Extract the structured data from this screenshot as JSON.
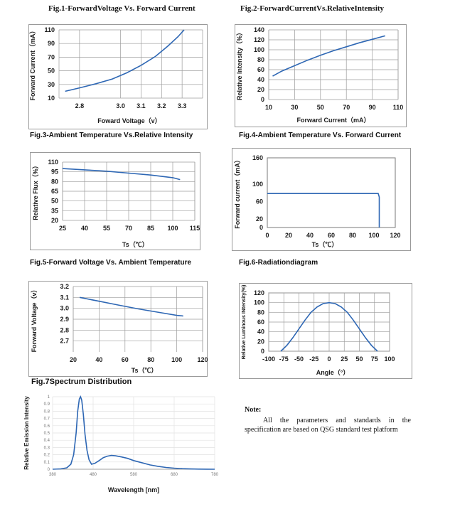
{
  "colors": {
    "curve": "#2e67b4",
    "grid": "#9c9c9c",
    "frame": "#9a9a9a"
  },
  "note": {
    "title": "Note:",
    "text": "All the parameters and standards in the specification are based on QSG standard test platform"
  },
  "chart_data": [
    {
      "id": "fig1",
      "type": "line",
      "title": "Fig.1-ForwardVoltage Vs. Forward Current",
      "xlabel": "Foward Voltage（v）",
      "ylabel": "Forward Current（mA）",
      "xlim": [
        2.7,
        3.4
      ],
      "ylim": [
        10,
        110
      ],
      "xticks": [
        2.8,
        3.0,
        3.1,
        3.2,
        3.3
      ],
      "xtick_labels": [
        "2.8",
        "3.0",
        "3.1",
        "3.2",
        "3.3"
      ],
      "yticks": [
        10,
        30,
        50,
        70,
        90,
        110
      ],
      "ytick_labels": [
        "10",
        "30",
        "50",
        "70",
        "90",
        "110"
      ],
      "grid": true,
      "series": [
        {
          "x": [
            2.73,
            2.8,
            2.88,
            2.96,
            3.03,
            3.1,
            3.17,
            3.23,
            3.28,
            3.31
          ],
          "y": [
            20,
            25,
            31,
            38,
            47,
            58,
            71,
            86,
            100,
            110
          ]
        }
      ]
    },
    {
      "id": "fig2",
      "type": "line",
      "title": "Fig.2-ForwardCurrentVs.RelativeIntensity",
      "xlabel": "Forward Current（mA）",
      "ylabel": "Relative Intensity（%）",
      "xlim": [
        10,
        110
      ],
      "ylim": [
        0,
        140
      ],
      "xticks": [
        10,
        30,
        50,
        70,
        90,
        110
      ],
      "xtick_labels": [
        "10",
        "30",
        "50",
        "70",
        "90",
        "110"
      ],
      "yticks": [
        0,
        20,
        40,
        60,
        80,
        100,
        120,
        140
      ],
      "ytick_labels": [
        "0",
        "20",
        "40",
        "60",
        "80",
        "100",
        "120",
        "140"
      ],
      "grid": true,
      "series": [
        {
          "x": [
            13,
            20,
            30,
            40,
            50,
            60,
            70,
            80,
            90,
            100
          ],
          "y": [
            47,
            57,
            68,
            79,
            89,
            98,
            106,
            114,
            121,
            128
          ]
        }
      ]
    },
    {
      "id": "fig3",
      "type": "line",
      "title": "Fig.3-Ambient Temperature Vs.Relative Intensity",
      "xlabel": "Ts（℃）",
      "ylabel": "Relative Flux（%）",
      "xlim": [
        25,
        115
      ],
      "ylim": [
        20,
        110
      ],
      "xticks": [
        25,
        40,
        55,
        70,
        85,
        100,
        115
      ],
      "xtick_labels": [
        "25",
        "40",
        "55",
        "70",
        "85",
        "100",
        "115"
      ],
      "yticks": [
        20,
        35,
        50,
        65,
        80,
        95,
        110
      ],
      "ytick_labels": [
        "20",
        "35",
        "50",
        "65",
        "80",
        "95",
        "110"
      ],
      "extra_yticks": [
        25,
        50,
        80
      ],
      "grid": true,
      "series": [
        {
          "x": [
            25,
            40,
            55,
            70,
            85,
            100,
            105
          ],
          "y": [
            100,
            98,
            96,
            93,
            90,
            86,
            83
          ]
        }
      ]
    },
    {
      "id": "fig4",
      "type": "line",
      "title": "Fig.4-Ambient Temperature Vs. Forward Current",
      "xlabel": "Ts（℃）",
      "ylabel": "Forward current（mA）",
      "xlim": [
        0,
        120
      ],
      "ylim": [
        0,
        160
      ],
      "xticks": [
        0,
        20,
        40,
        60,
        80,
        100,
        120
      ],
      "xtick_labels": [
        "0",
        "20",
        "40",
        "60",
        "80",
        "100",
        "120"
      ],
      "yticks": [
        0,
        20,
        60,
        100,
        160
      ],
      "ytick_labels": [
        "0",
        "20",
        "60",
        "100",
        "160"
      ],
      "grid": false,
      "series": [
        {
          "x": [
            0,
            101,
            104,
            105,
            105
          ],
          "y": [
            78,
            78,
            78,
            70,
            0
          ]
        }
      ]
    },
    {
      "id": "fig5",
      "type": "line",
      "title": "Fig.5-Forward Voltage Vs. Ambient Temperature",
      "xlabel": "Ts（℃）",
      "ylabel": "Forward Voltage（v）",
      "xlim": [
        20,
        120
      ],
      "ylim": [
        2.6,
        3.2
      ],
      "xticks": [
        20,
        40,
        60,
        80,
        100,
        120
      ],
      "xtick_labels": [
        "20",
        "40",
        "60",
        "80",
        "100",
        "120"
      ],
      "yticks": [
        2.7,
        2.8,
        2.9,
        3.0,
        3.1,
        3.2
      ],
      "ytick_labels": [
        "2.7",
        "2.8",
        "2.9",
        "3.0",
        "3.1",
        "3.2"
      ],
      "grid": true,
      "series": [
        {
          "x": [
            25,
            40,
            55,
            70,
            85,
            100,
            105
          ],
          "y": [
            3.1,
            3.065,
            3.03,
            2.995,
            2.965,
            2.935,
            2.93
          ]
        }
      ]
    },
    {
      "id": "fig6",
      "type": "line",
      "title": "Fig.6-Radiationdiagram",
      "xlabel": "Angle（°）",
      "ylabel": "Relative Luminous INtensity(%)",
      "xlim": [
        -100,
        100
      ],
      "ylim": [
        0,
        120
      ],
      "xticks": [
        -100,
        -75,
        -50,
        -25,
        0,
        25,
        50,
        75,
        100
      ],
      "xtick_labels": [
        "-100",
        "-75",
        "-50",
        "-25",
        "0",
        "25",
        "50",
        "75",
        "100"
      ],
      "yticks": [
        0,
        20,
        40,
        60,
        80,
        100,
        120
      ],
      "ytick_labels": [
        "0",
        "20",
        "40",
        "60",
        "80",
        "100",
        "120"
      ],
      "grid": true,
      "series": [
        {
          "x": [
            -80,
            -70,
            -60,
            -50,
            -40,
            -30,
            -20,
            -10,
            0,
            10,
            20,
            30,
            40,
            50,
            60,
            70,
            80
          ],
          "y": [
            0,
            12,
            28,
            46,
            64,
            80,
            91,
            98,
            100,
            98,
            91,
            80,
            64,
            46,
            28,
            12,
            0
          ]
        }
      ]
    },
    {
      "id": "fig7",
      "type": "line",
      "title": "Fig.7Spectrum Distribution",
      "xlabel": "Wavelength [nm]",
      "ylabel": "Relative Emission Intensity",
      "xlim": [
        380,
        780
      ],
      "ylim": [
        0,
        1
      ],
      "xticks": [
        380,
        480,
        580,
        680,
        780
      ],
      "xtick_labels": [
        "380",
        "480",
        "580",
        "680",
        "780"
      ],
      "yticks": [
        0,
        0.1,
        0.2,
        0.3,
        0.4,
        0.5,
        0.6,
        0.7,
        0.8,
        0.9,
        1
      ],
      "ytick_labels": [
        "0",
        "0.1",
        "0.2",
        "0.3",
        "0.4",
        "0.5",
        "0.6",
        "0.7",
        "0.8",
        "0.9",
        "1"
      ],
      "grid": true,
      "series": [
        {
          "x": [
            380,
            400,
            415,
            425,
            432,
            438,
            442,
            446,
            449,
            452,
            456,
            460,
            465,
            470,
            476,
            484,
            495,
            505,
            515,
            525,
            535,
            550,
            565,
            580,
            600,
            620,
            640,
            660,
            680,
            700,
            720,
            740,
            760,
            780
          ],
          "y": [
            0,
            0.005,
            0.02,
            0.07,
            0.2,
            0.5,
            0.8,
            0.97,
            1.0,
            0.95,
            0.75,
            0.48,
            0.26,
            0.13,
            0.07,
            0.08,
            0.12,
            0.16,
            0.18,
            0.19,
            0.185,
            0.17,
            0.15,
            0.12,
            0.09,
            0.06,
            0.04,
            0.025,
            0.015,
            0.008,
            0.004,
            0.002,
            0.001,
            0
          ]
        }
      ]
    }
  ]
}
